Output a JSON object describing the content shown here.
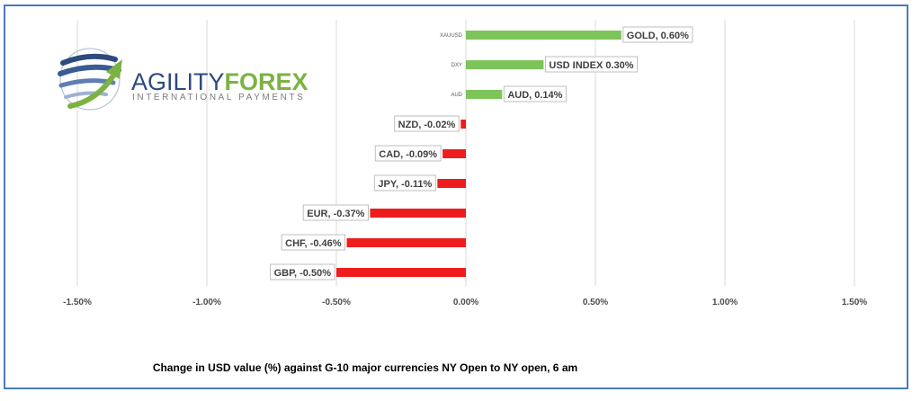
{
  "logo": {
    "word_left": "AGILITY",
    "word_right": "FOREX",
    "subtitle": "INTERNATIONAL PAYMENTS",
    "icon": "globe-swoosh-icon",
    "color_left": "#2e4a7d",
    "color_right": "#7bb342"
  },
  "caption": "Change in  USD value (%)  against  G-10 major currencies NY Open to NY open, 6 am",
  "colors": {
    "positive": "#7dc45a",
    "negative": "#ee1c1c",
    "grid": "#d9d9d9",
    "frame": "#4a7bbd"
  },
  "chart_data": {
    "type": "bar",
    "orientation": "horizontal",
    "title": "",
    "xlabel": "",
    "ylabel": "",
    "xlim": [
      -1.5,
      1.5
    ],
    "grid": true,
    "ticks": [
      -1.5,
      -1.0,
      -0.5,
      0.0,
      0.5,
      1.0,
      1.5
    ],
    "tick_labels": [
      "-1.50%",
      "-1.00%",
      "-0.50%",
      "0.00%",
      "0.50%",
      "1.00%",
      "1.50%"
    ],
    "categories": [
      "XAUUSD",
      "DXY",
      "AUD",
      "NZD",
      "CAD",
      "JPY",
      "EUR",
      "CHF",
      "GBP"
    ],
    "values": [
      0.6,
      0.3,
      0.14,
      -0.02,
      -0.09,
      -0.11,
      -0.37,
      -0.46,
      -0.5
    ],
    "data_labels": [
      "GOLD, 0.60%",
      "USD INDEX 0.30%",
      "AUD, 0.14%",
      "NZD, -0.02%",
      "CAD, -0.09%",
      "JPY, -0.11%",
      "EUR, -0.37%",
      "CHF, -0.46%",
      "GBP, -0.50%"
    ]
  }
}
